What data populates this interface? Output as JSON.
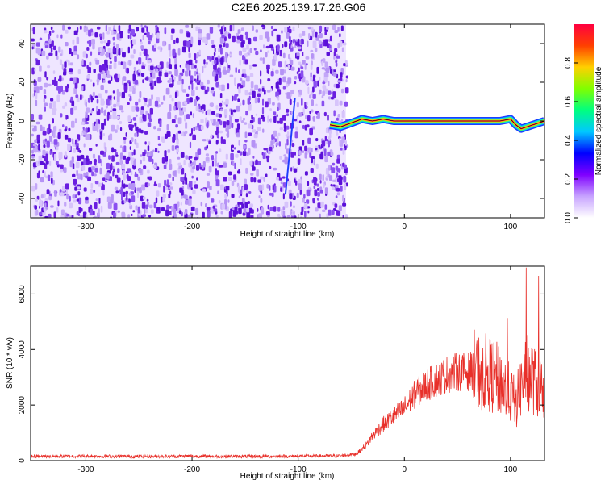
{
  "title": "C2E6.2025.139.17.26.G06",
  "colors": {
    "snr_line": "#e8302a",
    "scatter_purple": "#6a1de0",
    "scatter_light": "#cdb6f7"
  },
  "chart_data": [
    {
      "type": "heatmap",
      "title": "C2E6.2025.139.17.26.G06",
      "xlabel": "Height of straight line (km)",
      "ylabel": "Frequency (Hz)",
      "xlim": [
        -352,
        132
      ],
      "ylim": [
        -50,
        50
      ],
      "x_ticks": [
        -300,
        -200,
        -100,
        0,
        100
      ],
      "y_ticks": [
        -40,
        -20,
        0,
        20,
        40
      ],
      "colorbar": {
        "label": "Normalized spectral amplitude",
        "range": [
          0,
          1
        ],
        "ticks": [
          "0.0",
          "0.2",
          "0.4",
          "0.6",
          "0.8"
        ],
        "colors": [
          "#ffffff",
          "#c7a3ff",
          "#7f00ff",
          "#0000ff",
          "#00c8ff",
          "#00ff80",
          "#80ff00",
          "#ffd000",
          "#ff4000",
          "#ff0040"
        ]
      },
      "noise_region_x": [
        -352,
        -55
      ],
      "signal_track": {
        "x": [
          -70,
          -60,
          -50,
          -40,
          -30,
          -20,
          -10,
          0,
          20,
          40,
          60,
          80,
          90,
          100,
          105,
          110,
          132
        ],
        "freq": [
          -2,
          -3,
          -1,
          1,
          0,
          1,
          0,
          0,
          0,
          0,
          0,
          0,
          0,
          1,
          -2,
          -4,
          0
        ]
      },
      "streak": {
        "x": [
          -112,
          -103
        ],
        "freq": [
          -38,
          12
        ]
      }
    },
    {
      "type": "line",
      "xlabel": "Height of straight line (km)",
      "ylabel": "SNR (10 * v/v)",
      "xlim": [
        -352,
        132
      ],
      "ylim": [
        0,
        7000
      ],
      "x_ticks": [
        -300,
        -200,
        -100,
        0,
        100
      ],
      "y_ticks": [
        0,
        2000,
        4000,
        6000
      ],
      "series": [
        {
          "x": [
            -352,
            -300,
            -250,
            -200,
            -150,
            -100,
            -60,
            -45,
            -35,
            -30,
            -20,
            -10,
            0,
            10,
            20,
            30,
            40,
            50,
            60,
            70,
            75,
            80,
            85,
            90,
            95,
            100,
            105,
            110,
            115,
            120,
            125,
            132
          ],
          "values": [
            150,
            160,
            150,
            160,
            150,
            160,
            170,
            250,
            600,
            900,
            1300,
            1600,
            1900,
            2400,
            2700,
            2900,
            3100,
            3200,
            3200,
            3300,
            3200,
            3100,
            3000,
            2900,
            2600,
            2400,
            2000,
            2700,
            3200,
            3000,
            2700,
            2600
          ]
        }
      ]
    }
  ]
}
